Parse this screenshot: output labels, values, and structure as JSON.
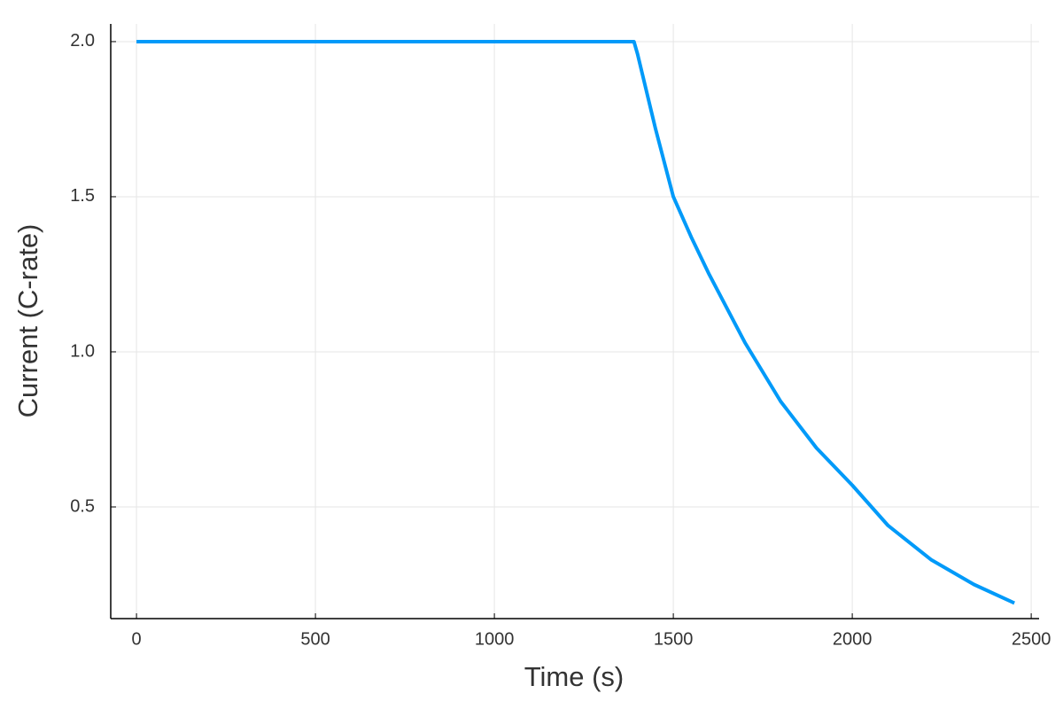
{
  "chart_data": {
    "type": "line",
    "x_label": "Time (s)",
    "y_label": "Current (C-rate)",
    "series": [
      {
        "color": "#009af9",
        "x": [
          0,
          1390,
          1400,
          1450,
          1500,
          1550,
          1600,
          1700,
          1800,
          1900,
          2000,
          2100,
          2220,
          2340,
          2453
        ],
        "values": [
          2.0,
          2.0,
          1.96,
          1.72,
          1.5,
          1.37,
          1.25,
          1.03,
          0.84,
          0.69,
          0.57,
          0.44,
          0.33,
          0.25,
          0.19
        ]
      }
    ],
    "xlim": [
      -72,
      2522
    ],
    "xticks": [
      0,
      500,
      1000,
      1500,
      2000,
      2500
    ],
    "ylim": [
      0.14,
      2.057
    ],
    "yticks": [
      0.5,
      {
        "value": 1,
        "label": "1.0"
      },
      1.5,
      {
        "value": 2,
        "label": "2.0"
      }
    ],
    "grid": true
  }
}
